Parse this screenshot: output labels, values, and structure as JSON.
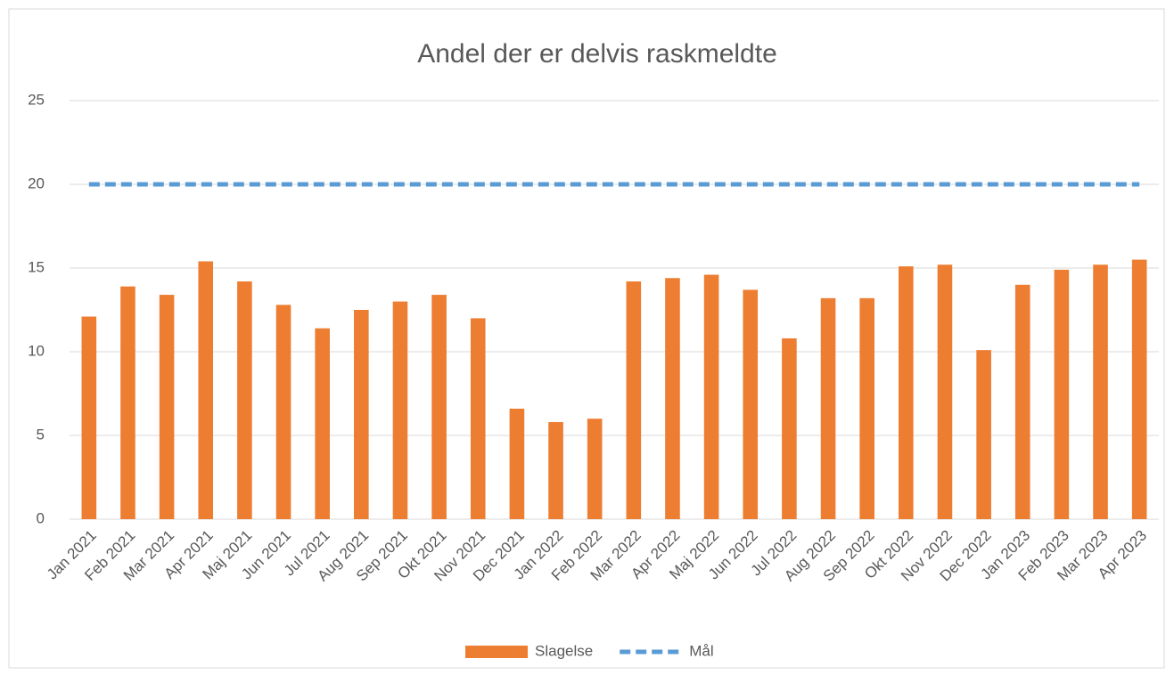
{
  "chart_data": {
    "type": "bar_line",
    "title": "Andel der er delvis raskmeldte",
    "categories": [
      "Jan 2021",
      "Feb 2021",
      "Mar 2021",
      "Apr 2021",
      "Maj 2021",
      "Jun 2021",
      "Jul 2021",
      "Aug 2021",
      "Sep 2021",
      "Okt 2021",
      "Nov 2021",
      "Dec 2021",
      "Jan 2022",
      "Feb 2022",
      "Mar 2022",
      "Apr 2022",
      "Maj 2022",
      "Jun 2022",
      "Jul 2022",
      "Aug 2022",
      "Sep 2022",
      "Okt 2022",
      "Nov 2022",
      "Dec 2022",
      "Jan 2023",
      "Feb 2023",
      "Mar 2023",
      "Apr 2023"
    ],
    "series": [
      {
        "name": "Slagelse",
        "color": "#ed7d31",
        "type": "bar",
        "values": [
          12.1,
          13.9,
          13.4,
          15.4,
          14.2,
          12.8,
          11.4,
          12.5,
          13.0,
          13.4,
          12.0,
          6.6,
          5.8,
          6.0,
          14.2,
          14.4,
          14.6,
          13.7,
          10.8,
          13.2,
          13.2,
          15.1,
          15.2,
          10.1,
          14.0,
          14.9,
          15.2,
          15.5
        ]
      },
      {
        "name": "Mål",
        "color": "#5b9bd5",
        "type": "line",
        "dashed": true,
        "values": [
          20,
          20,
          20,
          20,
          20,
          20,
          20,
          20,
          20,
          20,
          20,
          20,
          20,
          20,
          20,
          20,
          20,
          20,
          20,
          20,
          20,
          20,
          20,
          20,
          20,
          20,
          20,
          20
        ]
      }
    ],
    "ylim": [
      0,
      25
    ],
    "yticks": [
      0,
      5,
      10,
      15,
      20,
      25
    ],
    "grid": true,
    "legend": "bottom"
  }
}
